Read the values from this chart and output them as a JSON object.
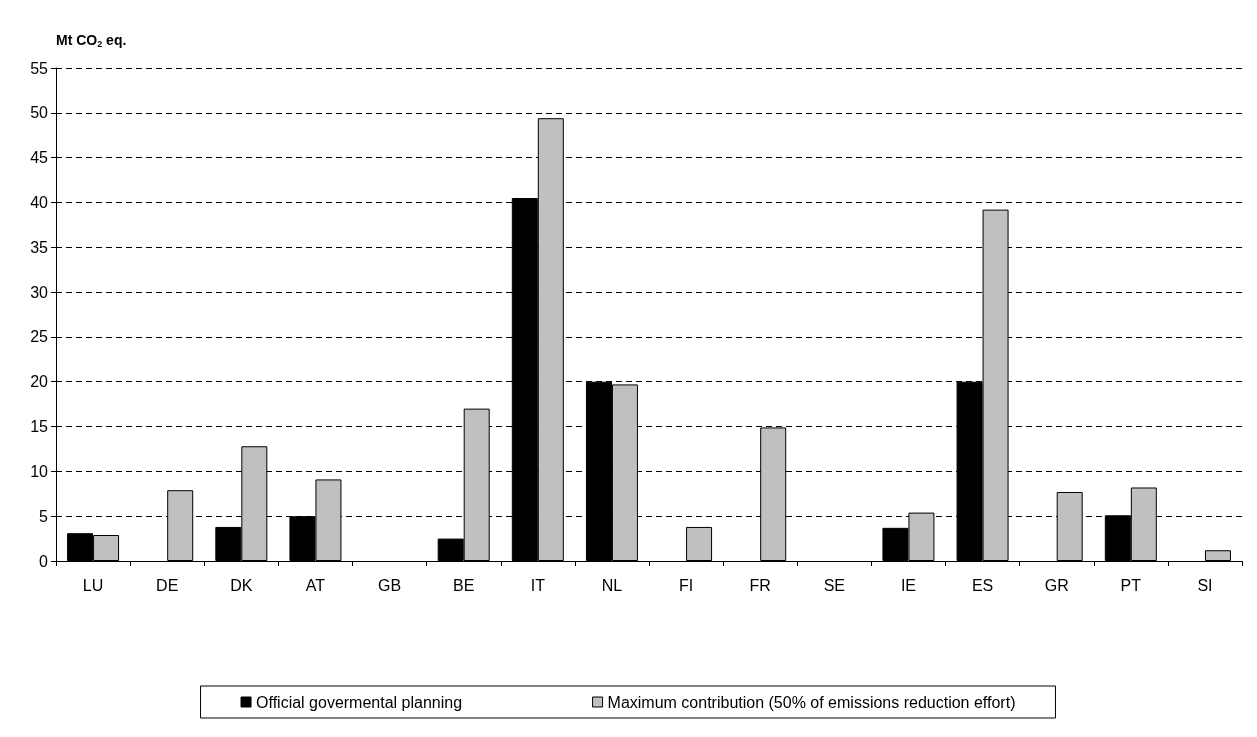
{
  "chart_data": {
    "type": "bar",
    "ylabel": "Mt CO$_{2}$ eq.",
    "categories": [
      "LU",
      "DE",
      "DK",
      "AT",
      "GB",
      "BE",
      "IT",
      "NL",
      "FI",
      "FR",
      "SE",
      "IE",
      "ES",
      "GR",
      "PT",
      "SI"
    ],
    "series": [
      {
        "name": "Official govermental planning",
        "color": "#000000",
        "values": [
          3.1,
          null,
          3.8,
          5.0,
          null,
          2.5,
          40.5,
          20.0,
          null,
          null,
          null,
          3.7,
          20.0,
          null,
          5.1,
          null
        ]
      },
      {
        "name": "Maximum contribution (50% of emissions reduction effort)",
        "color": "#c0c0c0",
        "values": [
          2.9,
          7.9,
          12.8,
          9.1,
          null,
          17.0,
          49.4,
          19.7,
          3.8,
          14.9,
          null,
          5.4,
          39.2,
          7.7,
          8.2,
          1.2
        ]
      }
    ],
    "ylim": [
      0,
      55
    ],
    "yticks": [
      0,
      5,
      10,
      15,
      20,
      25,
      30,
      35,
      40,
      45,
      50,
      55
    ],
    "grid": "y",
    "legend": "bottom"
  }
}
